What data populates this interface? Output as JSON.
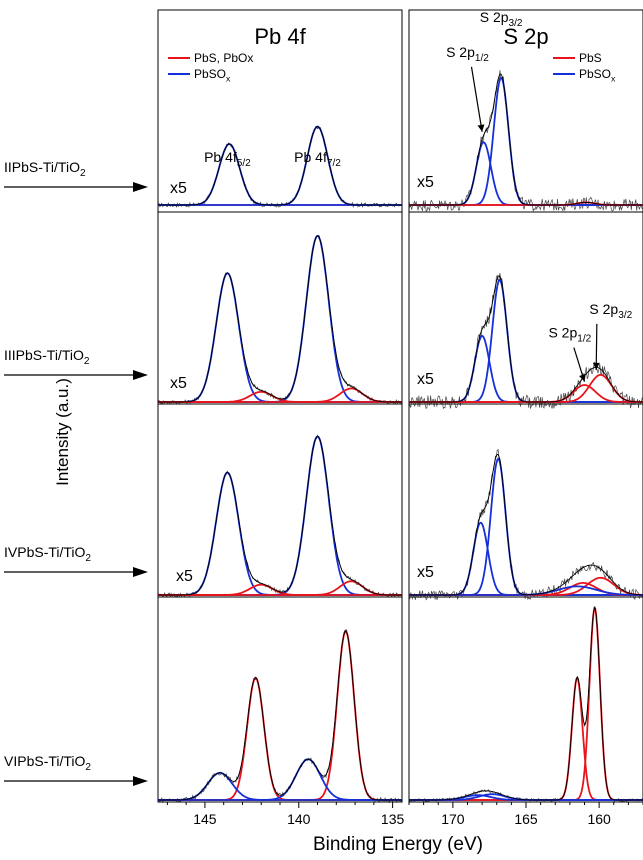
{
  "colors": {
    "pbs": "#e8141b",
    "pbso": "#1530d8",
    "envelope": "#000000",
    "raw": "#222222"
  },
  "y_axis_label": "Intensity (a.u.)",
  "x_axis_label": "Binding Energy (eV)",
  "samples": [
    {
      "name": "IIPbS-Ti/TiO",
      "sub": "2"
    },
    {
      "name": "IIIPbS-Ti/TiO",
      "sub": "2"
    },
    {
      "name": "IVPbS-Ti/TiO",
      "sub": "2"
    },
    {
      "name": "VIPbS-Ti/TiO",
      "sub": "2"
    }
  ],
  "chart_data": [
    {
      "type": "line",
      "title": "Pb 4f",
      "xlabel": "Binding Energy (eV)",
      "ylabel": "Intensity (a.u.)",
      "xlim": [
        147.5,
        134.5
      ],
      "x_ticks": [
        145,
        140,
        135
      ],
      "x_axis_reversed": true,
      "legend": {
        "placement": "top-left",
        "entries": [
          {
            "name": "PbS, PbOx",
            "color": "#e8141b"
          },
          {
            "name": "PbSO",
            "sub": "x",
            "color": "#1530d8"
          }
        ]
      },
      "peak_labels": [
        {
          "text": "Pb 4f",
          "sub": "5/2",
          "x": 143.8
        },
        {
          "text": "Pb 4f",
          "sub": "7/2",
          "x": 139.0
        }
      ],
      "panels": [
        {
          "sample": "IIPbS-Ti/TiO2",
          "multiplier": "x5",
          "ymax": 1.05,
          "components": [
            {
              "series": "PbSO",
              "center": 143.7,
              "amp": 0.35,
              "sigma": 0.55
            },
            {
              "series": "PbSO",
              "center": 139.0,
              "amp": 0.45,
              "sigma": 0.55
            }
          ]
        },
        {
          "sample": "IIIPbS-Ti/TiO2",
          "multiplier": "x5",
          "ymax": 1.05,
          "components": [
            {
              "series": "PbSO",
              "center": 143.8,
              "amp": 0.76,
              "sigma": 0.6
            },
            {
              "series": "PbSO",
              "center": 139.0,
              "amp": 0.98,
              "sigma": 0.6
            },
            {
              "series": "PbS",
              "center": 142.0,
              "amp": 0.06,
              "sigma": 0.6
            },
            {
              "series": "PbS",
              "center": 137.2,
              "amp": 0.08,
              "sigma": 0.6
            }
          ]
        },
        {
          "sample": "IVPbS-Ti/TiO2",
          "multiplier": "x5",
          "ymax": 1.05,
          "components": [
            {
              "series": "PbSO",
              "center": 143.8,
              "amp": 0.71,
              "sigma": 0.6
            },
            {
              "series": "PbSO",
              "center": 139.0,
              "amp": 0.92,
              "sigma": 0.6
            },
            {
              "series": "PbS",
              "center": 142.0,
              "amp": 0.06,
              "sigma": 0.6
            },
            {
              "series": "PbS",
              "center": 137.2,
              "amp": 0.08,
              "sigma": 0.6
            }
          ]
        },
        {
          "sample": "VIPbS-Ti/TiO2",
          "multiplier": "",
          "ymax": 1.0,
          "components": [
            {
              "series": "PbS",
              "center": 142.3,
              "amp": 0.63,
              "sigma": 0.45
            },
            {
              "series": "PbS",
              "center": 137.5,
              "amp": 0.87,
              "sigma": 0.45
            },
            {
              "series": "PbSO",
              "center": 144.2,
              "amp": 0.14,
              "sigma": 0.65
            },
            {
              "series": "PbSO",
              "center": 139.5,
              "amp": 0.21,
              "sigma": 0.65
            }
          ]
        }
      ]
    },
    {
      "type": "line",
      "title": "S 2p",
      "xlabel": "Binding Energy (eV)",
      "ylabel": "Intensity (a.u.)",
      "xlim": [
        173.0,
        157.0
      ],
      "x_ticks": [
        170,
        165,
        160
      ],
      "x_axis_reversed": true,
      "legend": {
        "placement": "top-right",
        "entries": [
          {
            "name": "PbS",
            "color": "#e8141b"
          },
          {
            "name": "PbSO",
            "sub": "x",
            "color": "#1530d8"
          }
        ]
      },
      "peak_labels": [
        {
          "text": "S 2p",
          "sub": "1/2",
          "panel": 1,
          "x": 169.0,
          "y": 0.85,
          "arrow_to_x": 168.0,
          "arrow_to_y": 0.42
        },
        {
          "text": "S 2p",
          "sub": "3/2",
          "panel": 1,
          "x": 166.7,
          "y": 1.05
        },
        {
          "text": "S 2p",
          "sub": "1/2",
          "panel": 2,
          "x": 162.0,
          "y": 0.38,
          "arrow_to_x": 161.0,
          "arrow_to_y": 0.12
        },
        {
          "text": "S 2p",
          "sub": "3/2",
          "panel": 2,
          "x": 159.2,
          "y": 0.52,
          "arrow_to_x": 160.2,
          "arrow_to_y": 0.19
        }
      ],
      "panels": [
        {
          "sample": "IIPbS-Ti/TiO2",
          "multiplier": "x5",
          "ymax": 1.05,
          "noise": 0.035,
          "components": [
            {
              "series": "PbSO",
              "center": 167.9,
              "amp": 0.36,
              "sigma": 0.5
            },
            {
              "series": "PbSO",
              "center": 166.7,
              "amp": 0.73,
              "sigma": 0.5
            },
            {
              "series": "PbS",
              "center": 160.9,
              "amp": 0.015,
              "sigma": 0.6
            }
          ]
        },
        {
          "sample": "IIIPbS-Ti/TiO2",
          "multiplier": "x5",
          "ymax": 1.05,
          "noise": 0.04,
          "components": [
            {
              "series": "PbSO",
              "center": 168.0,
              "amp": 0.39,
              "sigma": 0.5
            },
            {
              "series": "PbSO",
              "center": 166.8,
              "amp": 0.72,
              "sigma": 0.5
            },
            {
              "series": "PbS",
              "center": 161.0,
              "amp": 0.1,
              "sigma": 0.75
            },
            {
              "series": "PbS",
              "center": 159.9,
              "amp": 0.16,
              "sigma": 0.75
            }
          ]
        },
        {
          "sample": "IVPbS-Ti/TiO2",
          "multiplier": "x5",
          "ymax": 1.05,
          "noise": 0.03,
          "components": [
            {
              "series": "PbSO",
              "center": 168.1,
              "amp": 0.42,
              "sigma": 0.5
            },
            {
              "series": "PbSO",
              "center": 166.9,
              "amp": 0.79,
              "sigma": 0.5
            },
            {
              "series": "PbS",
              "center": 161.1,
              "amp": 0.07,
              "sigma": 0.9
            },
            {
              "series": "PbS",
              "center": 159.9,
              "amp": 0.1,
              "sigma": 0.9
            },
            {
              "series": "PbSO",
              "center": 161.5,
              "amp": 0.05,
              "sigma": 1.3
            }
          ]
        },
        {
          "sample": "VIPbS-Ti/TiO2",
          "multiplier": "",
          "ymax": 1.0,
          "noise": 0.008,
          "components": [
            {
              "series": "PbS",
              "center": 161.5,
              "amp": 0.63,
              "sigma": 0.36
            },
            {
              "series": "PbS",
              "center": 160.3,
              "amp": 0.99,
              "sigma": 0.36
            },
            {
              "series": "PbSO",
              "center": 168.3,
              "amp": 0.025,
              "sigma": 0.9
            },
            {
              "series": "PbSO",
              "center": 167.3,
              "amp": 0.03,
              "sigma": 0.9
            }
          ]
        }
      ]
    }
  ]
}
